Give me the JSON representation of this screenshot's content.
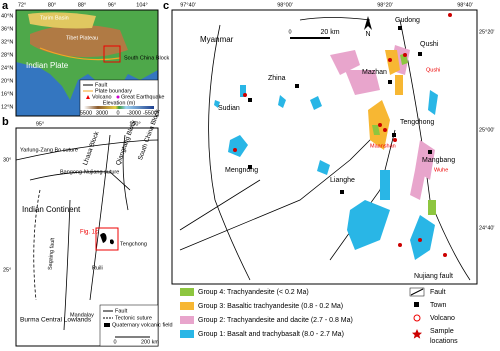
{
  "panel_a": {
    "label": "a",
    "lon_ticks": [
      "72°",
      "80°",
      "88°",
      "96°",
      "104°"
    ],
    "lat_ticks": [
      "40°N",
      "36°N",
      "32°N",
      "28°N",
      "24°N",
      "20°N",
      "16°N",
      "12°N"
    ],
    "places": [
      "Tarim Basin",
      "Tibet Plateau",
      "Indian Plate",
      "South China Block"
    ],
    "legend": {
      "items": [
        "Fault",
        "Plate boundary",
        "Volcano",
        "Great Earthquake"
      ],
      "elevation_title": "Elevation (m)",
      "elevation_ticks": [
        "5500",
        "3000",
        "0",
        "-3000",
        "-5500"
      ]
    }
  },
  "panel_b": {
    "label": "b",
    "lon_ticks": [
      "95°",
      "100°"
    ],
    "lat_ticks": [
      "30°",
      "25°"
    ],
    "places": [
      "Lhasa Block",
      "Qiangtang Block",
      "South China Block",
      "Indian Continent",
      "Burma Central Lowlands",
      "Mandalay",
      "Ruili",
      "Tengchong",
      "Yarlung-Zang Bo suture",
      "Bangong-Nujiang suture",
      "Sagaing fault"
    ],
    "callout": "Fig. 1c",
    "legend": [
      "Fault",
      "Tectonic suture",
      "Quaternary volcanic field"
    ],
    "scale": [
      "0",
      "200 km"
    ]
  },
  "panel_c": {
    "label": "c",
    "lon_ticks": [
      "97°40'",
      "98°00'",
      "98°20'",
      "98°40'"
    ],
    "lat_ticks": [
      "25°20'",
      "25°00'",
      "24°40'"
    ],
    "country": "Myanmar",
    "towns": [
      "Gudong",
      "Qushi",
      "Mazhan",
      "Zhina",
      "Sudian",
      "Tengchong",
      "Mangbang",
      "Mengnong",
      "Lianghe"
    ],
    "volcanoes": [
      "Qushi",
      "Maanshan",
      "Wuhe"
    ],
    "fault_name": "Nujiang fault",
    "north": "N",
    "scale": [
      "0",
      "20 km"
    ]
  },
  "legend": {
    "groups": [
      "Group 4: Trachyandesite (< 0.2 Ma)",
      "Group 3: Basaltic trachyandesite (0.8 - 0.2 Ma)",
      "Group 2: Trachyandesite and dacite (2.7 - 0.8 Ma)",
      "Group 1: Basalt and trachybasalt (8.0 - 2.7 Ma)"
    ],
    "symbols": [
      "Fault",
      "Town",
      "Volcano",
      "Sample",
      "locations"
    ]
  }
}
